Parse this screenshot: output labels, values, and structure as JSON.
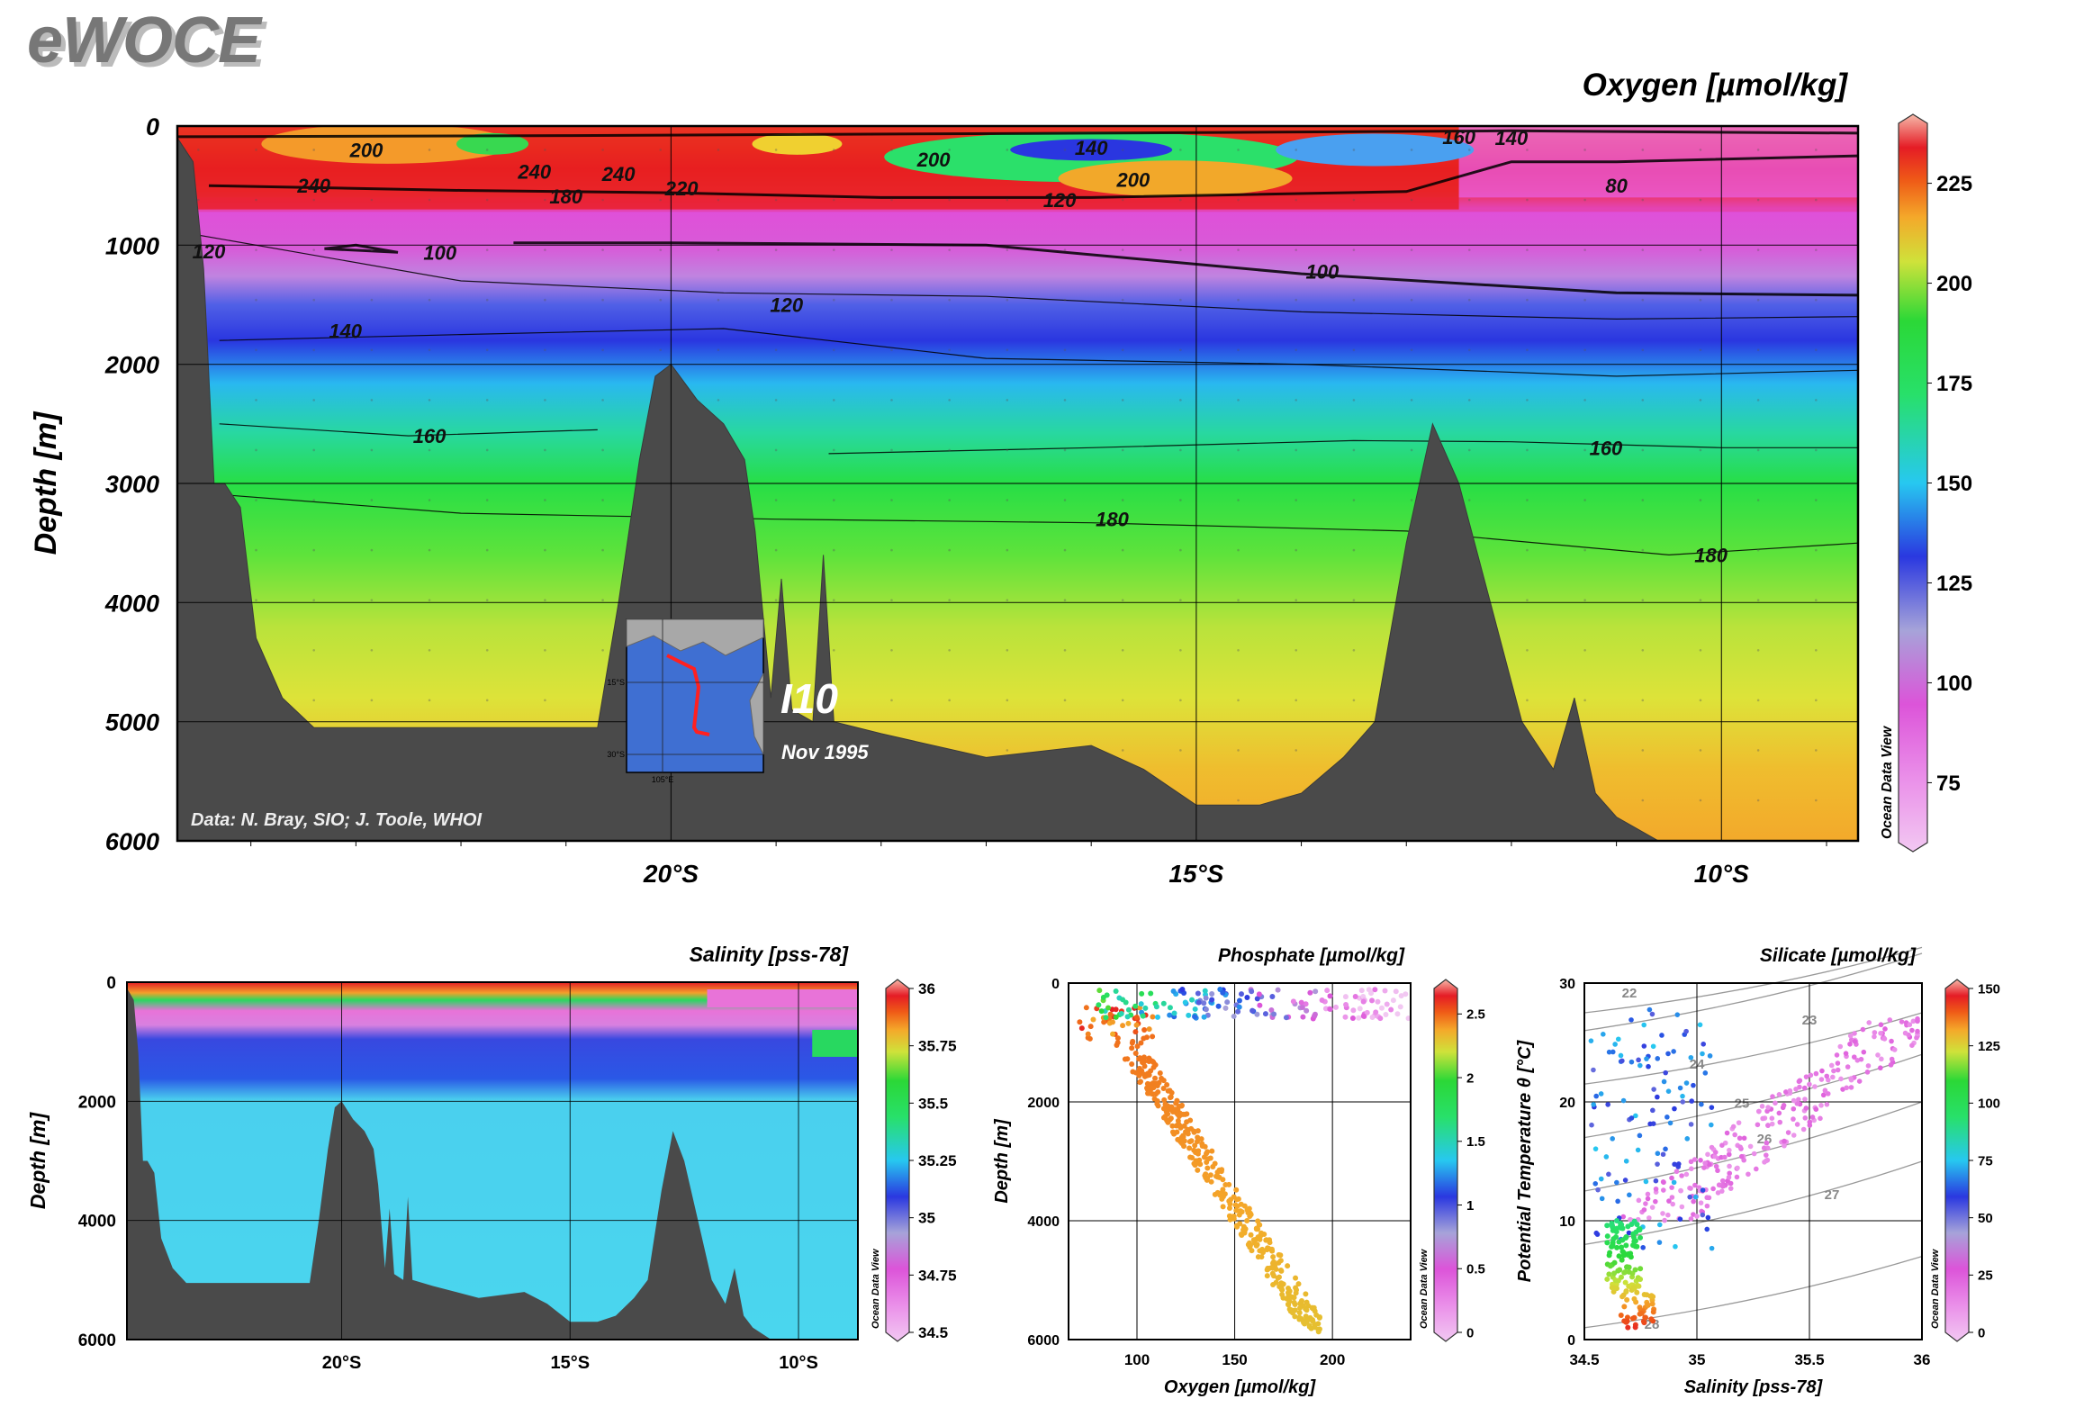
{
  "brand": "eWOCE",
  "main_section": {
    "title": "Oxygen [µmol/kg]",
    "ylabel": "Depth [m]",
    "credit": "Data: N. Bray, SIO; J. Toole, WHOI",
    "cruise": "I10",
    "date": "Nov 1995",
    "odv_label": "Ocean Data View",
    "inset_labels": [
      "15°S",
      "30°S",
      "105°E"
    ]
  },
  "chart_data": [
    {
      "id": "oxygen-section",
      "type": "heatmap",
      "title": "Oxygen [µmol/kg]",
      "xlabel": "",
      "ylabel": "Depth [m]",
      "xlim": [
        -24.7,
        -8.7
      ],
      "ylim": [
        6000,
        0
      ],
      "yticks": [
        0,
        1000,
        2000,
        3000,
        4000,
        5000,
        6000
      ],
      "xticks": [
        -20,
        -15,
        -10
      ],
      "xticklabels": [
        "20°S",
        "15°S",
        "10°S"
      ],
      "grid": true,
      "colorbar": {
        "min": 60,
        "max": 240,
        "ticks": [
          75,
          100,
          125,
          150,
          175,
          200,
          225
        ],
        "label": "Ocean Data View"
      },
      "contour_labels": [
        {
          "value": "200",
          "lat": -22.9,
          "depth": 200
        },
        {
          "value": "240",
          "lat": -23.4,
          "depth": 500
        },
        {
          "value": "240",
          "lat": -21.3,
          "depth": 380
        },
        {
          "value": "240",
          "lat": -20.5,
          "depth": 400
        },
        {
          "value": "180",
          "lat": -21.0,
          "depth": 590
        },
        {
          "value": "220",
          "lat": -19.9,
          "depth": 520
        },
        {
          "value": "200",
          "lat": -17.5,
          "depth": 280
        },
        {
          "value": "140",
          "lat": -16.0,
          "depth": 180
        },
        {
          "value": "200",
          "lat": -15.6,
          "depth": 450
        },
        {
          "value": "120",
          "lat": -16.3,
          "depth": 620
        },
        {
          "value": "160",
          "lat": -12.5,
          "depth": 90
        },
        {
          "value": "140",
          "lat": -12.0,
          "depth": 100
        },
        {
          "value": "80",
          "lat": -11.0,
          "depth": 500
        },
        {
          "value": "120",
          "lat": -24.4,
          "depth": 1050
        },
        {
          "value": "100",
          "lat": -22.2,
          "depth": 1060
        },
        {
          "value": "100",
          "lat": -13.8,
          "depth": 1220
        },
        {
          "value": "120",
          "lat": -18.9,
          "depth": 1500
        },
        {
          "value": "140",
          "lat": -23.1,
          "depth": 1720
        },
        {
          "value": "160",
          "lat": -22.3,
          "depth": 2600
        },
        {
          "value": "160",
          "lat": -11.1,
          "depth": 2700
        },
        {
          "value": "180",
          "lat": -15.8,
          "depth": 3300
        },
        {
          "value": "180",
          "lat": -10.1,
          "depth": 3600
        }
      ],
      "bathymetry": [
        [
          -24.7,
          6000
        ],
        [
          -24.7,
          100
        ],
        [
          -24.55,
          300
        ],
        [
          -24.45,
          1200
        ],
        [
          -24.35,
          3000
        ],
        [
          -24.25,
          3000
        ],
        [
          -24.1,
          3200
        ],
        [
          -23.95,
          4300
        ],
        [
          -23.7,
          4800
        ],
        [
          -23.4,
          5050
        ],
        [
          -22.0,
          5050
        ],
        [
          -20.7,
          5050
        ],
        [
          -20.5,
          4000
        ],
        [
          -20.3,
          2800
        ],
        [
          -20.15,
          2100
        ],
        [
          -20.0,
          2000
        ],
        [
          -19.75,
          2300
        ],
        [
          -19.5,
          2500
        ],
        [
          -19.3,
          2800
        ],
        [
          -19.2,
          3400
        ],
        [
          -19.05,
          4800
        ],
        [
          -18.95,
          3800
        ],
        [
          -18.85,
          4900
        ],
        [
          -18.65,
          5000
        ],
        [
          -18.55,
          3600
        ],
        [
          -18.45,
          5000
        ],
        [
          -18.0,
          5100
        ],
        [
          -17.0,
          5300
        ],
        [
          -16.0,
          5200
        ],
        [
          -15.5,
          5400
        ],
        [
          -15.0,
          5700
        ],
        [
          -14.4,
          5700
        ],
        [
          -14.0,
          5600
        ],
        [
          -13.6,
          5300
        ],
        [
          -13.3,
          5000
        ],
        [
          -13.0,
          3500
        ],
        [
          -12.75,
          2500
        ],
        [
          -12.5,
          3000
        ],
        [
          -12.2,
          4000
        ],
        [
          -11.9,
          5000
        ],
        [
          -11.6,
          5400
        ],
        [
          -11.4,
          4800
        ],
        [
          -11.2,
          5600
        ],
        [
          -11.0,
          5800
        ],
        [
          -10.6,
          6000
        ],
        [
          -8.7,
          6000
        ]
      ]
    },
    {
      "id": "salinity-section",
      "type": "heatmap",
      "title": "Salinity [pss-78]",
      "ylabel": "Depth [m]",
      "xlim": [
        -24.7,
        -8.7
      ],
      "ylim": [
        6000,
        0
      ],
      "yticks": [
        0,
        2000,
        4000,
        6000
      ],
      "xticks": [
        -20,
        -15,
        -10
      ],
      "xticklabels": [
        "20°S",
        "15°S",
        "10°S"
      ],
      "grid": true,
      "colorbar": {
        "min": 34.5,
        "max": 36,
        "ticks": [
          34.5,
          34.75,
          35,
          35.25,
          35.5,
          35.75,
          36
        ],
        "label": "Ocean Data View"
      }
    },
    {
      "id": "phosphate-scatter",
      "type": "scatter",
      "title": "Phosphate [µmol/kg]",
      "xlabel": "Oxygen [µmol/kg]",
      "ylabel": "Depth [m]",
      "xlim": [
        65,
        240
      ],
      "ylim": [
        6000,
        0
      ],
      "xticks": [
        100,
        150,
        200
      ],
      "yticks": [
        0,
        2000,
        4000,
        6000
      ],
      "grid": true,
      "colorbar": {
        "min": 0,
        "max": 2.7,
        "ticks": [
          0,
          0.5,
          1,
          1.5,
          2,
          2.5
        ],
        "label": "Ocean Data View"
      }
    },
    {
      "id": "silicate-scatter",
      "type": "scatter",
      "title": "Silicate [µmol/kg]",
      "xlabel": "Salinity [pss-78]",
      "ylabel": "Potential Temperature θ [°C]",
      "xlim": [
        34.5,
        36
      ],
      "ylim": [
        0,
        30
      ],
      "xticks": [
        34.5,
        35,
        35.5,
        36
      ],
      "yticks": [
        0,
        10,
        20,
        30
      ],
      "grid": true,
      "isopycnal_labels": [
        "22",
        "23",
        "24",
        "25",
        "26",
        "27",
        "28"
      ],
      "colorbar": {
        "min": 0,
        "max": 150,
        "ticks": [
          0,
          25,
          50,
          75,
          100,
          125,
          150
        ],
        "label": "Ocean Data View"
      }
    }
  ]
}
